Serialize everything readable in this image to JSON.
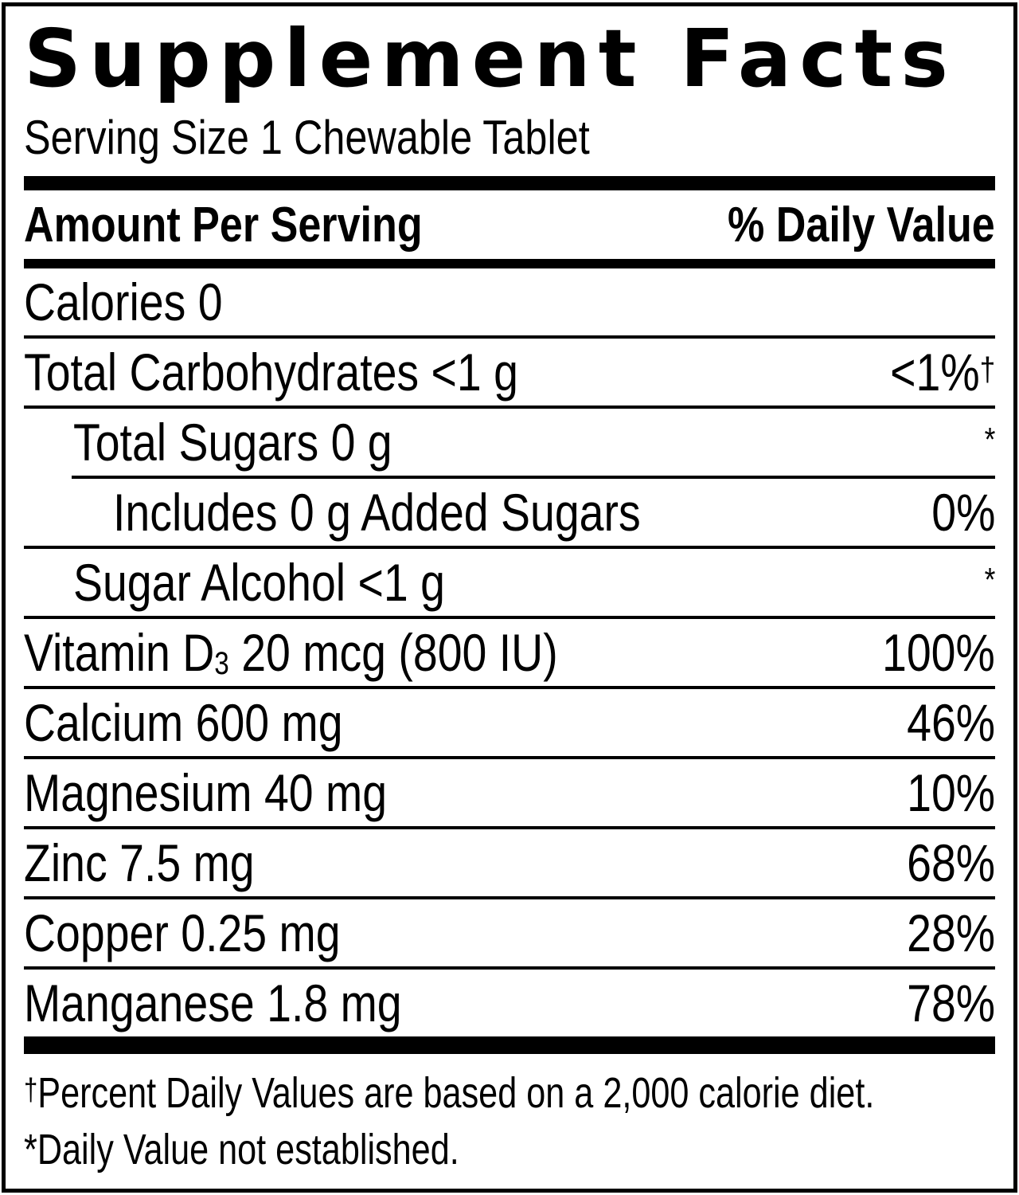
{
  "title": "Supplement Facts",
  "serving_size": "Serving Size 1 Chewable Tablet",
  "columns": {
    "amount": "Amount Per Serving",
    "daily_value": "% Daily Value"
  },
  "rows": [
    {
      "pre": "Calories 0",
      "value": "",
      "sup": ""
    },
    {
      "pre": "Total Carbohydrates <1 g",
      "value": "<1%",
      "sup": "†"
    },
    {
      "pre": "Total Sugars 0 g",
      "value": "",
      "sup": "*"
    },
    {
      "pre": "Includes 0 g Added Sugars",
      "value": "0%",
      "sup": ""
    },
    {
      "pre": "Sugar Alcohol <1 g",
      "value": "",
      "sup": "*"
    },
    {
      "pre": "Vitamin D",
      "sub": "3",
      "post": " 20 mcg (800 IU)",
      "value": "100%",
      "sup": ""
    },
    {
      "pre": "Calcium 600 mg",
      "value": "46%",
      "sup": ""
    },
    {
      "pre": "Magnesium 40 mg",
      "value": "10%",
      "sup": ""
    },
    {
      "pre": "Zinc 7.5 mg",
      "value": "68%",
      "sup": ""
    },
    {
      "pre": "Copper 0.25 mg",
      "value": "28%",
      "sup": ""
    },
    {
      "pre": "Manganese 1.8 mg",
      "value": "78%",
      "sup": ""
    }
  ],
  "footnotes": [
    {
      "marker": "†",
      "text": "Percent Daily Values are based on a 2,000 calorie diet."
    },
    {
      "marker": "*",
      "text": "Daily Value not established."
    }
  ],
  "colors": {
    "ink": "#000000",
    "background": "#ffffff"
  }
}
